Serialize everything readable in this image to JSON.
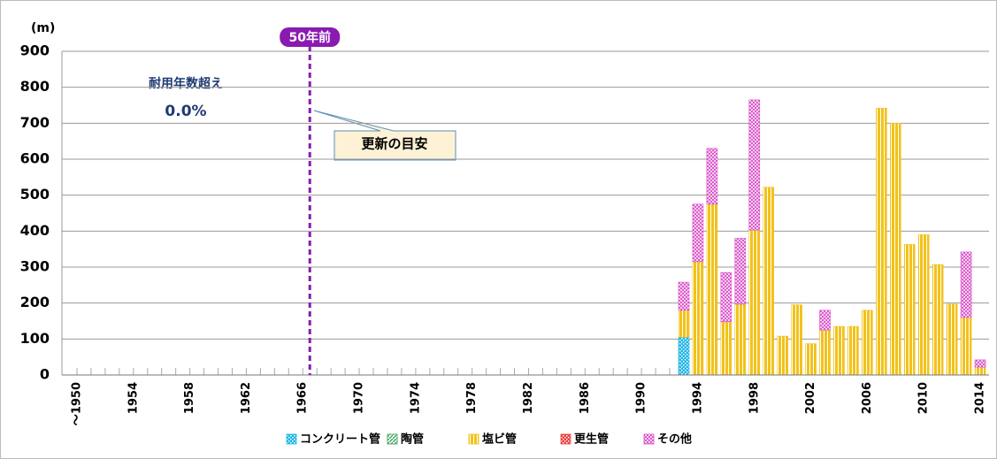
{
  "chart_data": {
    "type": "stacked_bar",
    "unit_label": "(m)",
    "marker_label": "50年前",
    "over_label": "耐用年数超え",
    "over_value": "0.0%",
    "callout": "更新の目安",
    "categories": [
      "～1950",
      null,
      null,
      null,
      "1954",
      null,
      null,
      null,
      "1958",
      null,
      null,
      null,
      "1962",
      null,
      null,
      null,
      "1966",
      null,
      null,
      null,
      "1970",
      null,
      null,
      null,
      "1974",
      null,
      null,
      null,
      "1978",
      null,
      null,
      null,
      "1982",
      null,
      null,
      null,
      "1986",
      null,
      null,
      null,
      "1990",
      null,
      null,
      null,
      "1994",
      null,
      null,
      null,
      "1998",
      null,
      null,
      null,
      "2002",
      null,
      null,
      null,
      "2006",
      null,
      null,
      null,
      "2010",
      null,
      null,
      null,
      "2014"
    ],
    "series": [
      {
        "name": "コンクリート管",
        "color": "#1fb4e6",
        "pattern": "dots",
        "values": [
          0,
          0,
          0,
          0,
          0,
          0,
          0,
          0,
          0,
          0,
          0,
          0,
          0,
          0,
          0,
          0,
          0,
          0,
          0,
          0,
          0,
          0,
          0,
          0,
          0,
          0,
          0,
          0,
          0,
          0,
          0,
          0,
          0,
          0,
          0,
          0,
          0,
          0,
          0,
          0,
          0,
          0,
          0,
          105,
          0,
          0,
          0,
          0,
          0,
          0,
          0,
          0,
          0,
          0,
          0,
          0,
          0,
          0,
          0,
          0,
          0,
          0,
          0,
          0,
          0
        ]
      },
      {
        "name": "陶管",
        "color": "#2e9e4f",
        "pattern": "diagonal",
        "values": [
          0,
          0,
          0,
          0,
          0,
          0,
          0,
          0,
          0,
          0,
          0,
          0,
          0,
          0,
          0,
          0,
          0,
          0,
          0,
          0,
          0,
          0,
          0,
          0,
          0,
          0,
          0,
          0,
          0,
          0,
          0,
          0,
          0,
          0,
          0,
          0,
          0,
          0,
          0,
          0,
          0,
          0,
          0,
          0,
          0,
          0,
          0,
          0,
          0,
          0,
          0,
          0,
          0,
          0,
          0,
          0,
          0,
          0,
          0,
          0,
          0,
          0,
          0,
          0,
          0
        ]
      },
      {
        "name": "塩ビ管",
        "color": "#f2c21b",
        "pattern": "vertical",
        "values": [
          0,
          0,
          0,
          0,
          0,
          0,
          0,
          0,
          0,
          0,
          0,
          0,
          0,
          0,
          0,
          0,
          0,
          0,
          0,
          0,
          0,
          0,
          0,
          0,
          0,
          0,
          0,
          0,
          0,
          0,
          0,
          0,
          0,
          0,
          0,
          0,
          0,
          0,
          0,
          0,
          0,
          0,
          0,
          75,
          315,
          475,
          148,
          197,
          403,
          522,
          108,
          195,
          87,
          125,
          135,
          135,
          180,
          742,
          700,
          363,
          390,
          307,
          197,
          160,
          22
        ]
      },
      {
        "name": "更生管",
        "color": "#e8413c",
        "pattern": "dots",
        "values": [
          0,
          0,
          0,
          0,
          0,
          0,
          0,
          0,
          0,
          0,
          0,
          0,
          0,
          0,
          0,
          0,
          0,
          0,
          0,
          0,
          0,
          0,
          0,
          0,
          0,
          0,
          0,
          0,
          0,
          0,
          0,
          0,
          0,
          0,
          0,
          0,
          0,
          0,
          0,
          0,
          0,
          0,
          0,
          0,
          0,
          0,
          0,
          0,
          0,
          0,
          0,
          0,
          0,
          0,
          0,
          0,
          0,
          0,
          0,
          0,
          0,
          0,
          0,
          0,
          0
        ]
      },
      {
        "name": "その他",
        "color": "#d94fc9",
        "pattern": "cross",
        "values": [
          0,
          0,
          0,
          0,
          0,
          0,
          0,
          0,
          0,
          0,
          0,
          0,
          0,
          0,
          0,
          0,
          0,
          0,
          0,
          0,
          0,
          0,
          0,
          0,
          0,
          0,
          0,
          0,
          0,
          0,
          0,
          0,
          0,
          0,
          0,
          0,
          0,
          0,
          0,
          0,
          0,
          0,
          0,
          78,
          160,
          155,
          137,
          183,
          362,
          0,
          0,
          0,
          0,
          55,
          0,
          0,
          0,
          0,
          0,
          0,
          0,
          0,
          0,
          182,
          20
        ]
      }
    ],
    "ylim": [
      0,
      900
    ],
    "yticks": [
      0,
      100,
      200,
      300,
      400,
      500,
      600,
      700,
      800,
      900
    ],
    "grid": true
  }
}
